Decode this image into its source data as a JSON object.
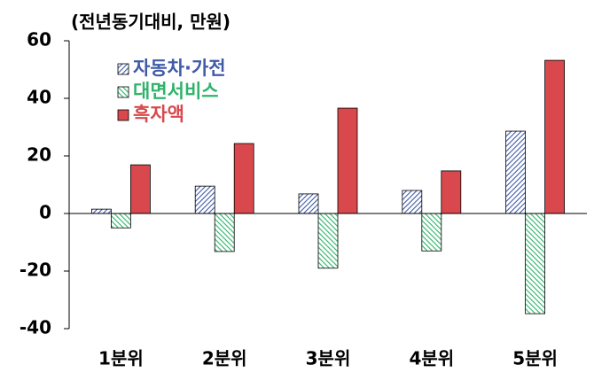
{
  "chart_data": {
    "type": "bar",
    "title": "(전년동기대비, 만원)",
    "categories": [
      "1분위",
      "2분위",
      "3분위",
      "4분위",
      "5분위"
    ],
    "series": [
      {
        "name": "자동차·가전",
        "color": "#3f5aa6",
        "values": [
          1.5,
          9.5,
          6.8,
          8,
          28.6
        ]
      },
      {
        "name": "대면서비스",
        "color": "#2fb36a",
        "values": [
          -5,
          -13.2,
          -19,
          -13,
          -34.8
        ]
      },
      {
        "name": "흑자액",
        "color": "#d9484c",
        "values": [
          16.9,
          24.3,
          36.6,
          14.8,
          53.2
        ]
      }
    ],
    "ylim": [
      -40,
      60
    ],
    "yticks": [
      -40,
      -20,
      0,
      20,
      40,
      60
    ],
    "legend": "upper-left"
  }
}
